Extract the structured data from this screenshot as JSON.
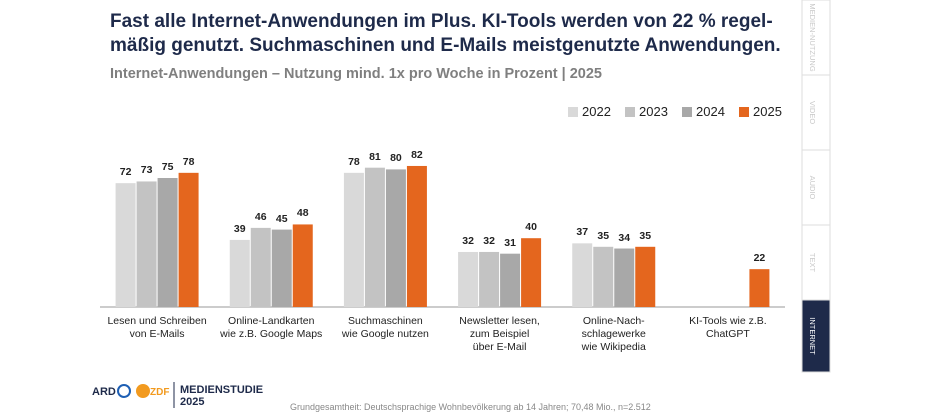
{
  "chart_data": {
    "type": "bar",
    "title": "Fast alle Internet-Anwendungen im Plus. KI-Tools werden von 22 % regel-\nmäßig genutzt. Suchmaschinen und E-Mails meistgenutzte Anwendungen.",
    "subtitle": "Internet-Anwendungen – Nutzung mind. 1x pro Woche in Prozent | 2025",
    "categories": [
      "Lesen und Schreiben\nvon E-Mails",
      "Online-Landkarten\nwie z.B. Google Maps",
      "Suchmaschinen\nwie Google nutzen",
      "Newsletter lesen,\nzum Beispiel\nüber E-Mail",
      "Online-Nach-\nschlagewerke\nwie Wikipedia",
      "KI-Tools wie z.B.\nChatGPT"
    ],
    "series": [
      {
        "name": "2022",
        "color": "#d9d9d9",
        "values": [
          72,
          39,
          78,
          32,
          37,
          null
        ]
      },
      {
        "name": "2023",
        "color": "#c3c3c3",
        "values": [
          73,
          46,
          81,
          32,
          35,
          null
        ]
      },
      {
        "name": "2024",
        "color": "#a8a8a8",
        "values": [
          75,
          45,
          80,
          31,
          34,
          null
        ]
      },
      {
        "name": "2025",
        "color": "#e4661e",
        "values": [
          78,
          48,
          82,
          40,
          35,
          22
        ]
      }
    ]
  },
  "sidebar": {
    "tabs": [
      "MEDIEN-NUTZUNG",
      "VIDEO",
      "AUDIO",
      "TEXT",
      "INTERNET"
    ],
    "active": 4
  },
  "footer": {
    "logos": [
      "ARD",
      "ZDF"
    ],
    "brand": "MEDIENSTUDIE",
    "year": "2025",
    "note": "Grundgesamtheit: Deutschsprachige Wohnbevölkerung ab 14 Jahren; 70,48 Mio., n=2.512"
  }
}
